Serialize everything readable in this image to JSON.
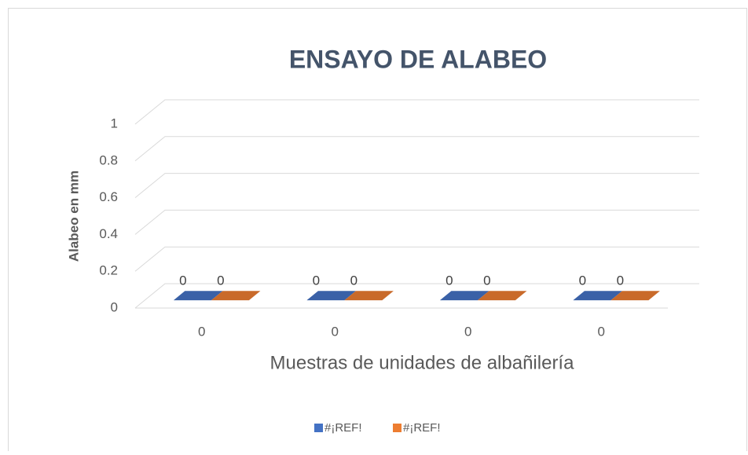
{
  "chart_data": {
    "type": "bar3d",
    "title": "ENSAYO DE ALABEO",
    "x_label": "Muestras de unidades de albañilería",
    "y_label": "Alabeo en mm",
    "categories": [
      "0",
      "0",
      "0",
      "0"
    ],
    "series": [
      {
        "name": "#¡REF!",
        "color": "#4472c4",
        "values": [
          0,
          0,
          0,
          0
        ]
      },
      {
        "name": "#¡REF!",
        "color": "#ed7d31",
        "values": [
          0,
          0,
          0,
          0
        ]
      }
    ],
    "ylim": [
      0,
      1
    ],
    "yticks": [
      0,
      0.2,
      0.4,
      0.6,
      0.8,
      1
    ],
    "grid": true,
    "legend": "bottom"
  }
}
